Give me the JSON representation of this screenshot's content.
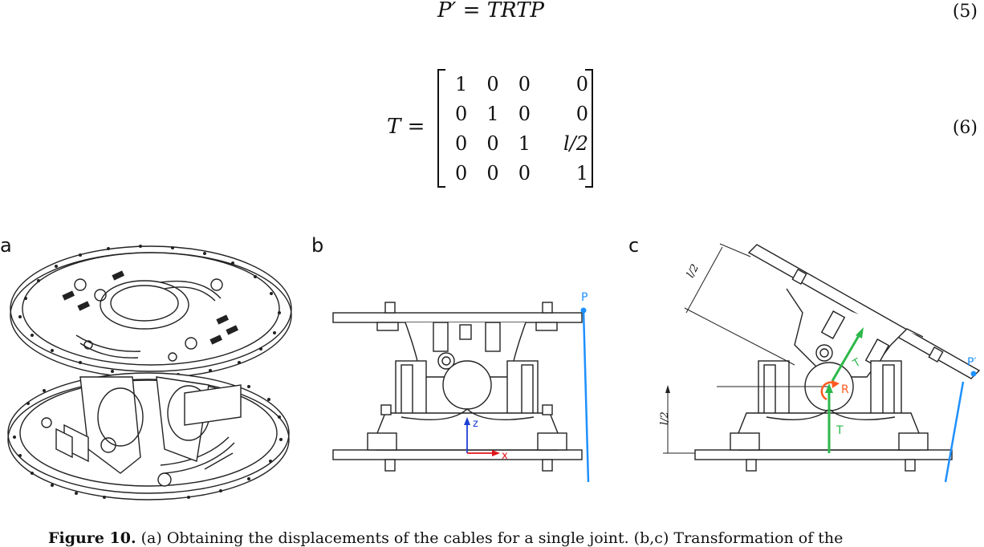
{
  "equations": {
    "eq5_text": "P′ = TRTP",
    "eq5_number": "(5)",
    "eq6_lhs": "T =",
    "eq6_number": "(6)",
    "matrix_rows": [
      [
        "1",
        "0",
        "0",
        "0"
      ],
      [
        "0",
        "1",
        "0",
        "0"
      ],
      [
        "0",
        "0",
        "1",
        "l/2"
      ],
      [
        "0",
        "0",
        "0",
        "1"
      ]
    ]
  },
  "panels": {
    "a_label": "a",
    "b_label": "b",
    "c_label": "c",
    "b_point": "P",
    "b_axis_z": "z",
    "b_axis_x": "x",
    "c_point": "P′",
    "c_T_upper": "T",
    "c_T_lower": "T",
    "c_R": "R",
    "c_dim_top": "l/2",
    "c_dim_left": "l/2"
  },
  "caption": {
    "figure": "Figure 10.",
    "text": "(a) Obtaining the displacements of the cables for a single joint. (b,c) Transformation of the"
  },
  "colors": {
    "blue": "#1e90ff",
    "green": "#2db84a",
    "orange": "#ff5a1f",
    "axis_blue": "#1c3fd6",
    "axis_red": "#e0141b"
  }
}
